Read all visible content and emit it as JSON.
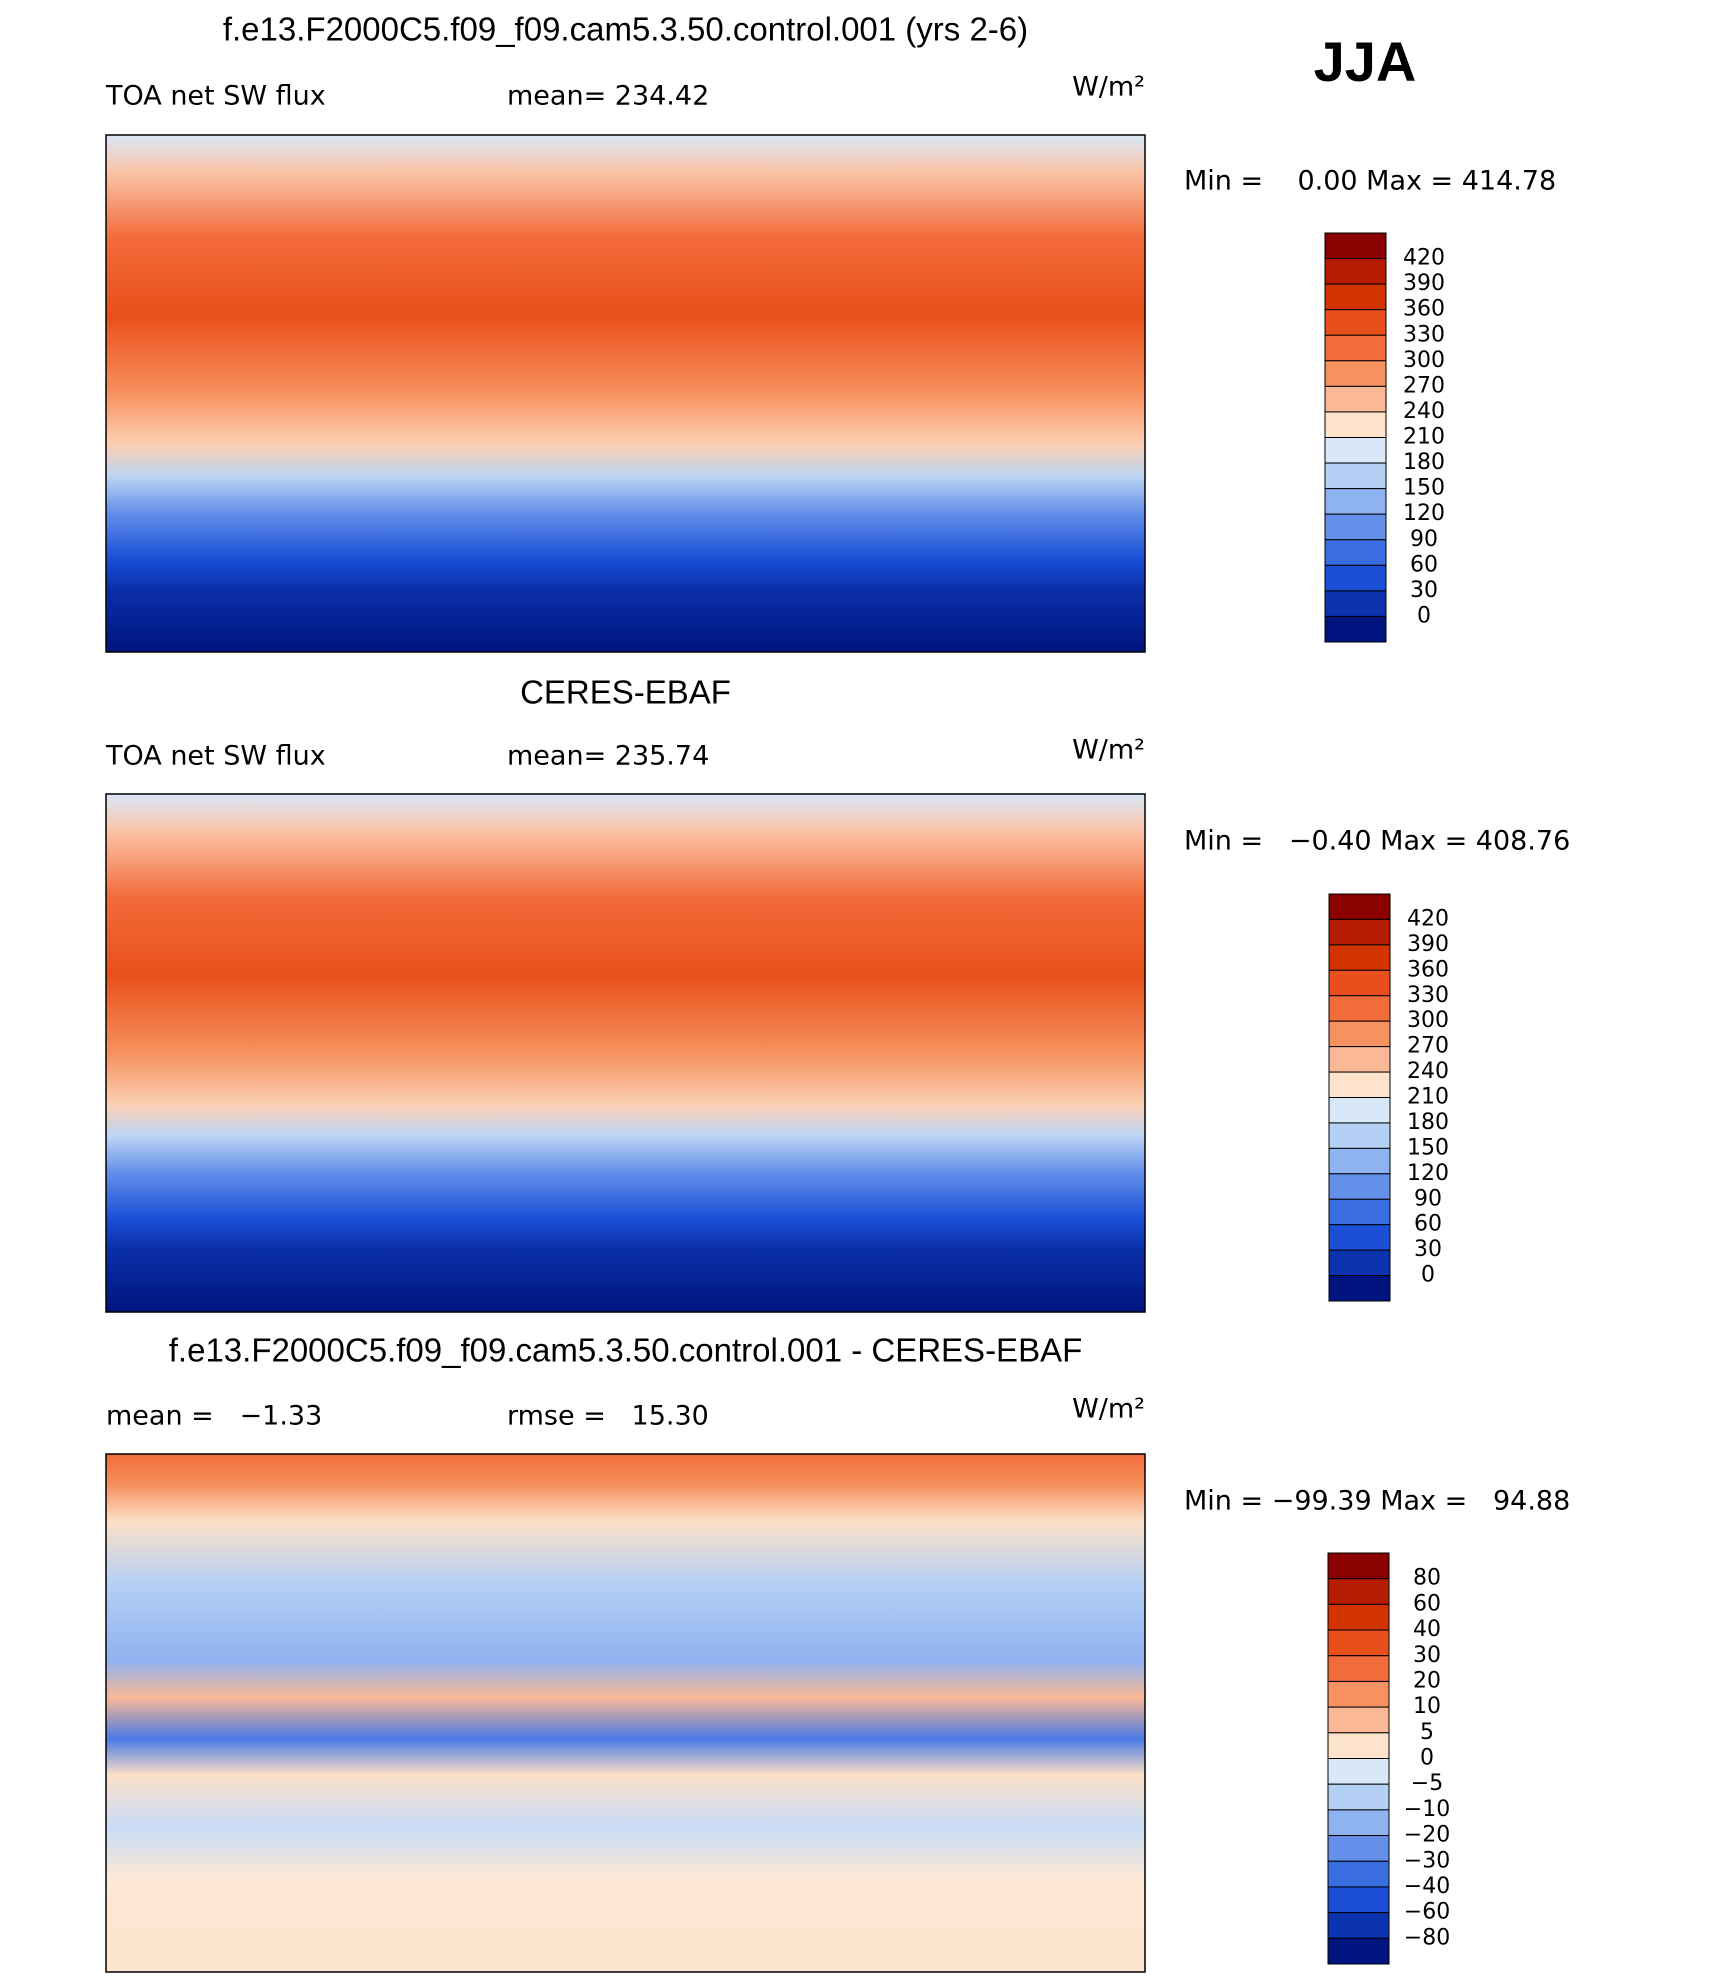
{
  "header": {
    "season": "JJA"
  },
  "panels": [
    {
      "title": "f.e13.F2000C5.f09_f09.cam5.3.50.control.001 (yrs 2-6)",
      "left_label": "TOA net SW flux",
      "right_label": "mean= 234.42",
      "units": "W/m²",
      "range": "Min =    0.00 Max = 414.78",
      "colorbar": {
        "levels": [
          "420",
          "390",
          "360",
          "330",
          "300",
          "270",
          "240",
          "210",
          "180",
          "150",
          "120",
          "90",
          "60",
          "30",
          "0"
        ],
        "colors": [
          "#8b0000",
          "#b51c00",
          "#d23400",
          "#e84f1a",
          "#f26b3a",
          "#f7915f",
          "#fbb896",
          "#fde3cc",
          "#d9e8f8",
          "#b5d0f5",
          "#8fb2f0",
          "#6490ea",
          "#3a6ee0",
          "#1a4fd6",
          "#0b33b0",
          "#00147f"
        ]
      }
    },
    {
      "title": "CERES-EBAF",
      "left_label": "TOA net SW flux",
      "right_label": "mean= 235.74",
      "units": "W/m²",
      "range": "Min =   −0.40 Max = 408.76",
      "colorbar": {
        "levels": [
          "420",
          "390",
          "360",
          "330",
          "300",
          "270",
          "240",
          "210",
          "180",
          "150",
          "120",
          "90",
          "60",
          "30",
          "0"
        ],
        "colors": [
          "#8b0000",
          "#b51c00",
          "#d23400",
          "#e84f1a",
          "#f26b3a",
          "#f7915f",
          "#fbb896",
          "#fde3cc",
          "#d9e8f8",
          "#b5d0f5",
          "#8fb2f0",
          "#6490ea",
          "#3a6ee0",
          "#1a4fd6",
          "#0b33b0",
          "#00147f"
        ]
      }
    },
    {
      "title": "f.e13.F2000C5.f09_f09.cam5.3.50.control.001 - CERES-EBAF",
      "left_label": "mean =   −1.33",
      "right_label": "rmse =   15.30",
      "units": "W/m²",
      "range": "Min = −99.39 Max =   94.88",
      "colorbar": {
        "levels": [
          "80",
          "60",
          "40",
          "30",
          "20",
          "10",
          "5",
          "0",
          "−5",
          "−10",
          "−20",
          "−30",
          "−40",
          "−60",
          "−80"
        ],
        "colors": [
          "#8b0000",
          "#b51c00",
          "#d23400",
          "#e84f1a",
          "#f26b3a",
          "#f7915f",
          "#fbb896",
          "#fde3cc",
          "#d9e8f8",
          "#b5d0f5",
          "#8fb2f0",
          "#6490ea",
          "#3a6ee0",
          "#1a4fd6",
          "#0b33b0",
          "#00147f"
        ]
      }
    }
  ]
}
